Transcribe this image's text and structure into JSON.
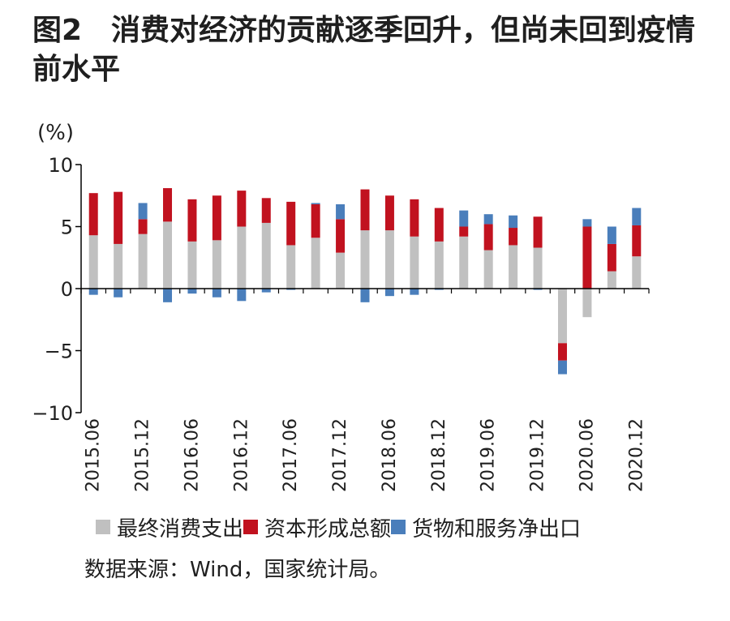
{
  "header": {
    "title": "图2　消费对经济的贡献逐季回升，但尚未回到疫情前水平"
  },
  "colors": {
    "consumption": "#c0c0c0",
    "capital": "#c1121f",
    "net_exports": "#4a7ebb",
    "axis": "#000000"
  },
  "chart_data": {
    "type": "bar",
    "stacked": true,
    "unit_label": "(%)",
    "title": "消费对经济的贡献逐季回升，但尚未回到疫情前水平",
    "xlabel": "",
    "ylabel": "(%)",
    "ylim": [
      -10,
      10
    ],
    "yticks": [
      "10",
      "5",
      "0",
      "−5",
      "−10"
    ],
    "ytick_values": [
      10,
      5,
      0,
      -5,
      -10
    ],
    "categories": [
      "2015.06",
      "2015.09",
      "2015.12",
      "2016.03",
      "2016.06",
      "2016.09",
      "2016.12",
      "2017.03",
      "2017.06",
      "2017.09",
      "2017.12",
      "2018.03",
      "2018.06",
      "2018.09",
      "2018.12",
      "2019.03",
      "2019.06",
      "2019.09",
      "2019.12",
      "2020.03",
      "2020.06",
      "2020.09",
      "2020.12"
    ],
    "xtick_labels": [
      "2015.06",
      "",
      "2015.12",
      "",
      "2016.06",
      "",
      "2016.12",
      "",
      "2017.06",
      "",
      "2017.12",
      "",
      "2018.06",
      "",
      "2018.12",
      "",
      "2019.06",
      "",
      "2019.12",
      "",
      "2020.06",
      "",
      "2020.12"
    ],
    "series": [
      {
        "name": "最终消费支出",
        "color_key": "consumption",
        "values": [
          4.3,
          3.6,
          4.4,
          5.4,
          3.8,
          3.9,
          5.0,
          5.3,
          3.5,
          4.1,
          2.9,
          4.7,
          4.7,
          4.2,
          3.8,
          4.2,
          3.1,
          3.5,
          3.3,
          -4.4,
          -2.3,
          1.4,
          2.6
        ]
      },
      {
        "name": "资本形成总额",
        "color_key": "capital",
        "values": [
          3.4,
          4.2,
          1.2,
          2.7,
          3.4,
          3.6,
          2.9,
          2.0,
          3.5,
          2.7,
          2.7,
          3.3,
          2.8,
          3.0,
          2.7,
          0.8,
          2.1,
          1.4,
          2.5,
          -1.4,
          5.0,
          2.2,
          2.5
        ]
      },
      {
        "name": "货物和服务净出口",
        "color_key": "net_exports",
        "values": [
          -0.5,
          -0.7,
          1.3,
          -1.1,
          -0.4,
          -0.7,
          -1.0,
          -0.3,
          -0.1,
          0.1,
          1.2,
          -1.1,
          -0.6,
          -0.5,
          -0.1,
          1.3,
          0.8,
          1.0,
          -0.1,
          -1.1,
          0.6,
          1.4,
          1.4
        ]
      }
    ],
    "legend_position": "bottom"
  },
  "legend": {
    "items": [
      {
        "label": "最终消费支出",
        "color_key": "consumption"
      },
      {
        "label": "资本形成总额",
        "color_key": "capital"
      },
      {
        "label": "货物和服务净出口",
        "color_key": "net_exports"
      }
    ]
  },
  "source": {
    "text": "数据来源：Wind，国家统计局。"
  }
}
